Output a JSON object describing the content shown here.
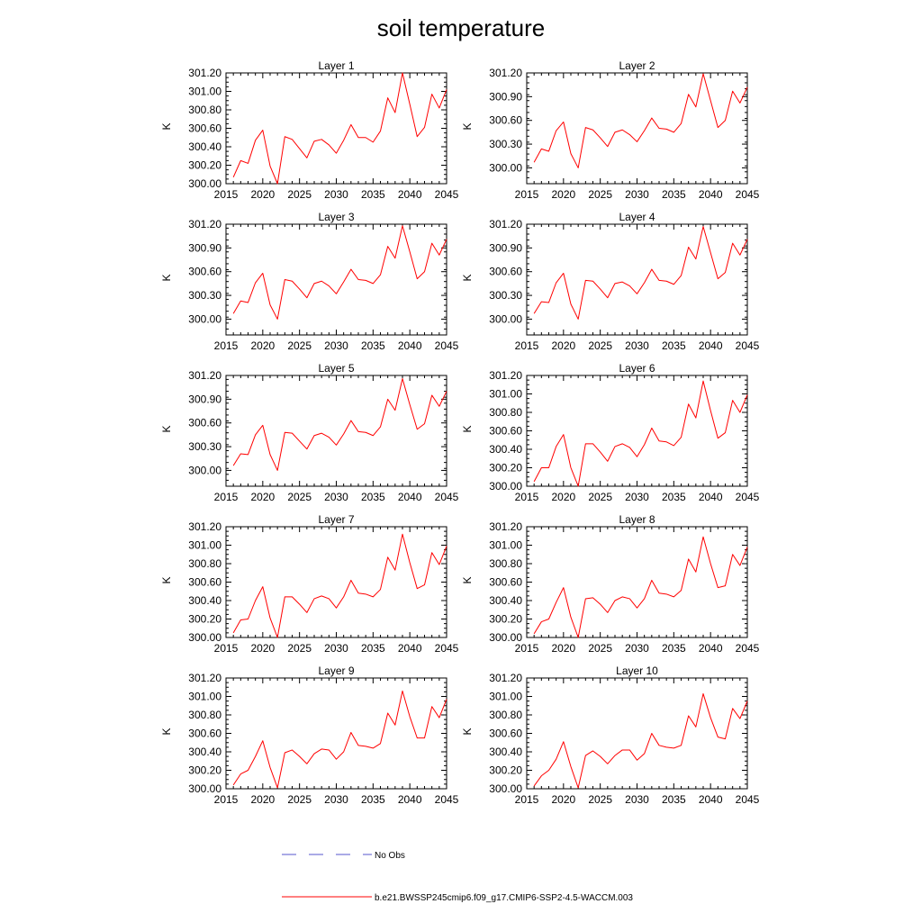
{
  "chart_data": {
    "type": "line",
    "title": "soil temperature",
    "ylabel": "K",
    "xlim": [
      2015,
      2045
    ],
    "xticks": [
      2015,
      2020,
      2025,
      2030,
      2035,
      2040,
      2045
    ],
    "years": [
      2016,
      2017,
      2018,
      2019,
      2020,
      2021,
      2022,
      2023,
      2024,
      2025,
      2026,
      2027,
      2028,
      2029,
      2030,
      2031,
      2032,
      2033,
      2034,
      2035,
      2036,
      2037,
      2038,
      2039,
      2040,
      2041,
      2042,
      2043,
      2044,
      2045
    ],
    "panels": [
      {
        "title": "Layer 1",
        "ylim": [
          300.0,
          301.2
        ],
        "yticks": [
          "300.00",
          "300.20",
          "300.40",
          "300.60",
          "300.80",
          "301.00",
          "301.20"
        ],
        "values": [
          300.07,
          300.25,
          300.22,
          300.47,
          300.58,
          300.19,
          299.99,
          300.51,
          300.48,
          300.38,
          300.28,
          300.46,
          300.48,
          300.42,
          300.33,
          300.47,
          300.64,
          300.5,
          300.5,
          300.45,
          300.57,
          300.93,
          300.77,
          301.2,
          300.86,
          300.51,
          300.61,
          300.97,
          300.82,
          301.02
        ]
      },
      {
        "title": "Layer 2",
        "ylim": [
          299.8,
          301.2
        ],
        "yticks": [
          "300.00",
          "300.30",
          "300.60",
          "300.90",
          "301.20"
        ],
        "values": [
          300.07,
          300.24,
          300.21,
          300.47,
          300.58,
          300.18,
          300.0,
          300.51,
          300.48,
          300.38,
          300.27,
          300.45,
          300.48,
          300.42,
          300.33,
          300.47,
          300.63,
          300.5,
          300.49,
          300.45,
          300.56,
          300.93,
          300.77,
          301.19,
          300.85,
          300.51,
          300.6,
          300.97,
          300.82,
          301.02
        ]
      },
      {
        "title": "Layer 3",
        "ylim": [
          299.8,
          301.2
        ],
        "yticks": [
          "300.00",
          "300.30",
          "300.60",
          "300.90",
          "301.20"
        ],
        "values": [
          300.07,
          300.23,
          300.21,
          300.46,
          300.58,
          300.18,
          300.0,
          300.5,
          300.48,
          300.38,
          300.27,
          300.45,
          300.48,
          300.42,
          300.32,
          300.47,
          300.63,
          300.5,
          300.49,
          300.45,
          300.56,
          300.92,
          300.77,
          301.18,
          300.85,
          300.51,
          300.6,
          300.96,
          300.81,
          301.01
        ]
      },
      {
        "title": "Layer 4",
        "ylim": [
          299.8,
          301.2
        ],
        "yticks": [
          "300.00",
          "300.30",
          "300.60",
          "300.90",
          "301.20"
        ],
        "values": [
          300.07,
          300.22,
          300.21,
          300.46,
          300.58,
          300.19,
          300.0,
          300.49,
          300.48,
          300.38,
          300.27,
          300.45,
          300.47,
          300.42,
          300.32,
          300.46,
          300.63,
          300.49,
          300.48,
          300.44,
          300.55,
          300.91,
          300.76,
          301.17,
          300.84,
          300.51,
          300.59,
          300.96,
          300.81,
          301.01
        ]
      },
      {
        "title": "Layer 5",
        "ylim": [
          299.8,
          301.2
        ],
        "yticks": [
          "300.00",
          "300.30",
          "300.60",
          "300.90",
          "301.20"
        ],
        "values": [
          300.06,
          300.21,
          300.2,
          300.45,
          300.57,
          300.2,
          300.0,
          300.48,
          300.47,
          300.37,
          300.27,
          300.44,
          300.47,
          300.42,
          300.32,
          300.46,
          300.63,
          300.49,
          300.48,
          300.44,
          300.55,
          300.9,
          300.76,
          301.16,
          300.83,
          300.52,
          300.59,
          300.95,
          300.81,
          301.0
        ]
      },
      {
        "title": "Layer 6",
        "ylim": [
          300.0,
          301.2
        ],
        "yticks": [
          "300.00",
          "300.20",
          "300.40",
          "300.60",
          "300.80",
          "301.00",
          "301.20"
        ],
        "values": [
          300.05,
          300.2,
          300.2,
          300.43,
          300.56,
          300.2,
          300.0,
          300.46,
          300.46,
          300.37,
          300.27,
          300.43,
          300.46,
          300.42,
          300.32,
          300.45,
          300.63,
          300.49,
          300.48,
          300.44,
          300.53,
          300.89,
          300.74,
          301.14,
          300.82,
          300.52,
          300.58,
          300.93,
          300.8,
          300.99
        ]
      },
      {
        "title": "Layer 7",
        "ylim": [
          300.0,
          301.2
        ],
        "yticks": [
          "300.00",
          "300.20",
          "300.40",
          "300.60",
          "300.80",
          "301.00",
          "301.20"
        ],
        "values": [
          300.05,
          300.19,
          300.2,
          300.4,
          300.55,
          300.21,
          300.0,
          300.44,
          300.44,
          300.36,
          300.27,
          300.42,
          300.45,
          300.42,
          300.32,
          300.44,
          300.62,
          300.48,
          300.47,
          300.44,
          300.52,
          300.87,
          300.73,
          301.12,
          300.81,
          300.53,
          300.57,
          300.92,
          300.79,
          300.99
        ]
      },
      {
        "title": "Layer 8",
        "ylim": [
          300.0,
          301.2
        ],
        "yticks": [
          "300.00",
          "300.20",
          "300.40",
          "300.60",
          "300.80",
          "301.00",
          "301.20"
        ],
        "values": [
          300.04,
          300.17,
          300.2,
          300.38,
          300.54,
          300.22,
          300.0,
          300.42,
          300.43,
          300.36,
          300.27,
          300.4,
          300.44,
          300.42,
          300.32,
          300.42,
          300.62,
          300.48,
          300.47,
          300.44,
          300.51,
          300.85,
          300.71,
          301.09,
          300.8,
          300.54,
          300.56,
          300.9,
          300.78,
          300.98
        ]
      },
      {
        "title": "Layer 9",
        "ylim": [
          300.0,
          301.2
        ],
        "yticks": [
          "300.00",
          "300.20",
          "300.40",
          "300.60",
          "300.80",
          "301.00",
          "301.20"
        ],
        "values": [
          300.04,
          300.16,
          300.2,
          300.35,
          300.52,
          300.23,
          300.01,
          300.39,
          300.42,
          300.35,
          300.27,
          300.38,
          300.43,
          300.42,
          300.32,
          300.4,
          300.61,
          300.47,
          300.46,
          300.44,
          300.49,
          300.82,
          300.69,
          301.06,
          300.78,
          300.55,
          300.55,
          300.89,
          300.77,
          300.97
        ]
      },
      {
        "title": "Layer 10",
        "ylim": [
          300.0,
          301.2
        ],
        "yticks": [
          "300.00",
          "300.20",
          "300.40",
          "300.60",
          "300.80",
          "301.00",
          "301.20"
        ],
        "values": [
          300.03,
          300.14,
          300.2,
          300.32,
          300.51,
          300.24,
          300.01,
          300.36,
          300.41,
          300.35,
          300.27,
          300.36,
          300.42,
          300.42,
          300.31,
          300.38,
          300.6,
          300.47,
          300.45,
          300.44,
          300.47,
          300.79,
          300.67,
          301.03,
          300.77,
          300.56,
          300.54,
          300.87,
          300.76,
          300.95
        ]
      }
    ],
    "legend": [
      {
        "label": "No Obs",
        "style": "dashed",
        "color": "#5555cc"
      },
      {
        "label": "b.e21.BWSSP245cmip6.f09_g17.CMIP6-SSP2-4.5-WACCM.003",
        "style": "solid",
        "color": "#ff0000"
      }
    ]
  }
}
